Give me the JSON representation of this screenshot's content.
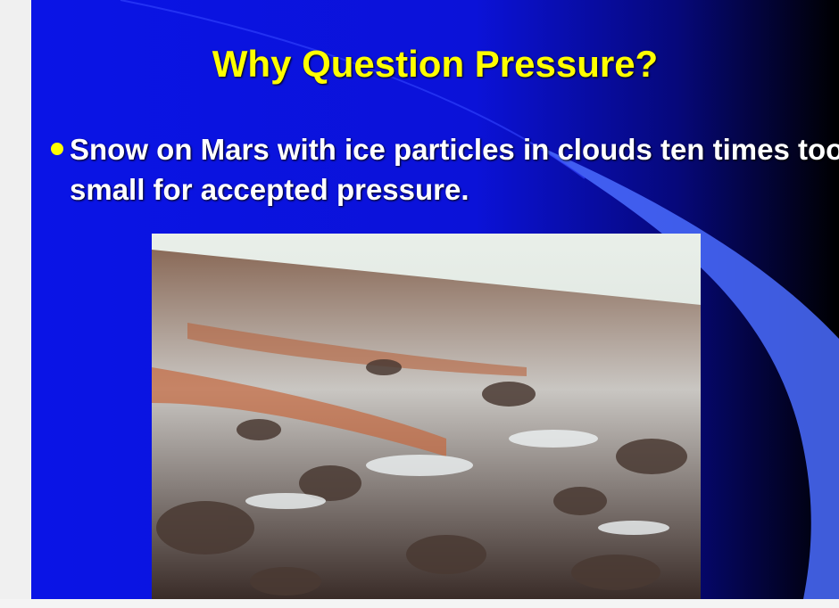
{
  "slide": {
    "title": "Why Question Pressure?",
    "bullets": [
      "Snow on Mars with ice particles in clouds ten times too small for accepted pressure."
    ]
  }
}
